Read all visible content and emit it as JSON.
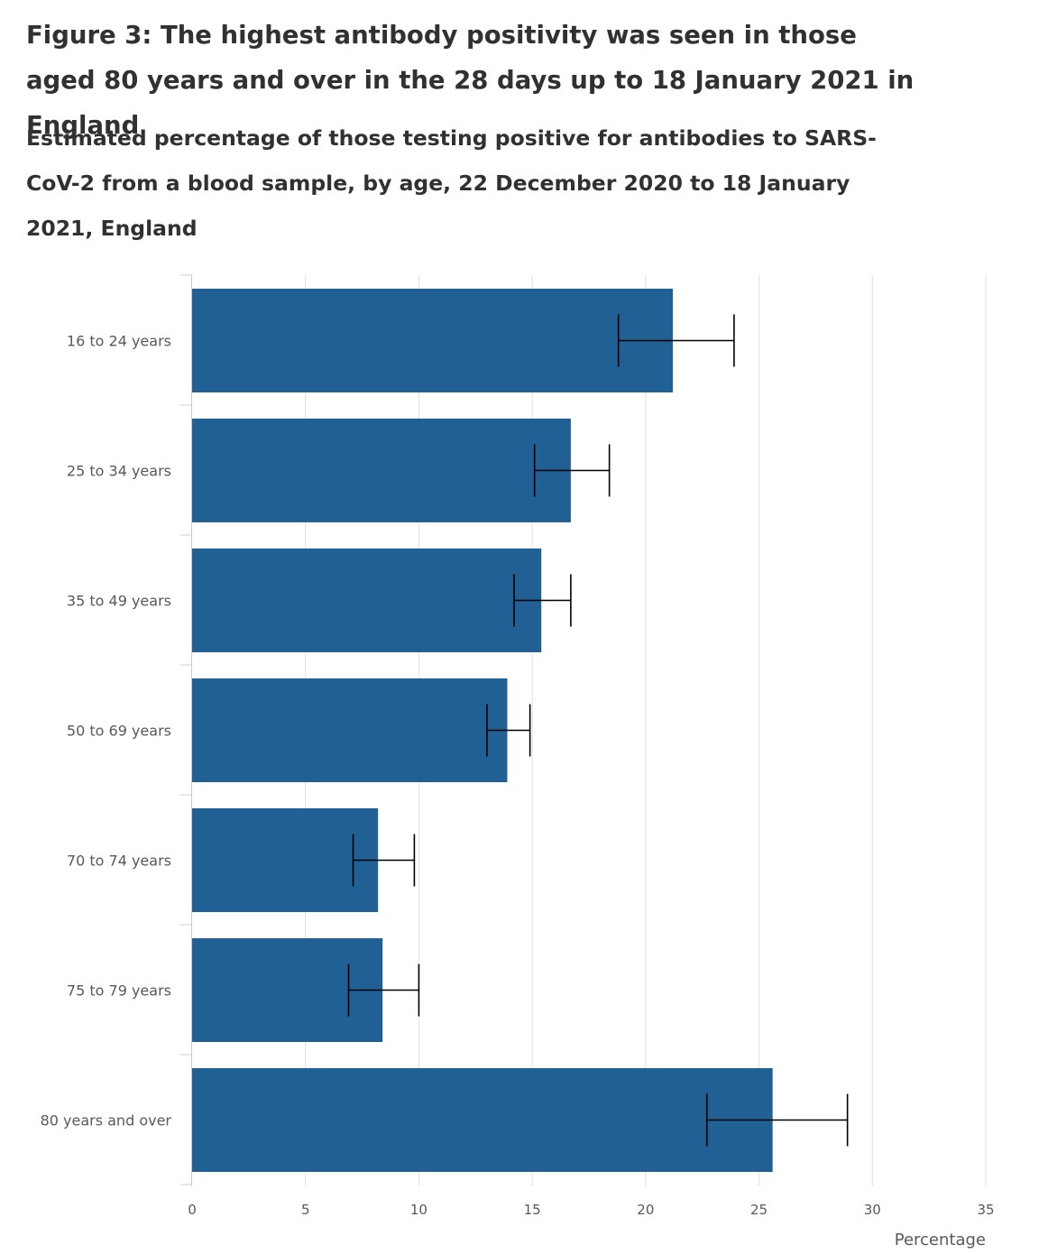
{
  "figure": {
    "title": "Figure 3: The highest antibody positivity was seen in those aged 80 years and over in the 28 days up to 18 January 2021 in England",
    "subtitle": "Estimated percentage of those testing positive for antibodies to SARS-CoV-2 from a blood sample, by age, 22 December 2020 to 18 January 2021, England"
  },
  "chart_data": {
    "type": "bar",
    "orientation": "horizontal",
    "title": "Figure 3: The highest antibody positivity was seen in those aged 80 years and over in the 28 days up to 18 January 2021 in England",
    "subtitle": "Estimated percentage of those testing positive for antibodies to SARS-CoV-2 from a blood sample, by age, 22 December 2020 to 18 January 2021, England",
    "categories": [
      "16 to 24 years",
      "25 to 34 years",
      "35 to 49 years",
      "50 to 69 years",
      "70 to 74 years",
      "75 to 79 years",
      "80 years and over"
    ],
    "values": [
      21.2,
      16.7,
      15.4,
      13.9,
      8.2,
      8.4,
      25.6
    ],
    "error_lower": [
      18.8,
      15.1,
      14.2,
      13.0,
      7.1,
      6.9,
      22.7
    ],
    "error_upper": [
      23.9,
      18.4,
      16.7,
      14.9,
      9.8,
      10.0,
      28.9
    ],
    "xlabel": "Percentage",
    "ylabel": "",
    "xlim": [
      0,
      35
    ],
    "xticks": [
      0,
      5,
      10,
      15,
      20,
      25,
      30,
      35
    ],
    "grid": "vertical",
    "bar_color": "#206095",
    "error_bar_color": "#000000",
    "grid_color": "#e0e0e0",
    "legend": "none"
  }
}
